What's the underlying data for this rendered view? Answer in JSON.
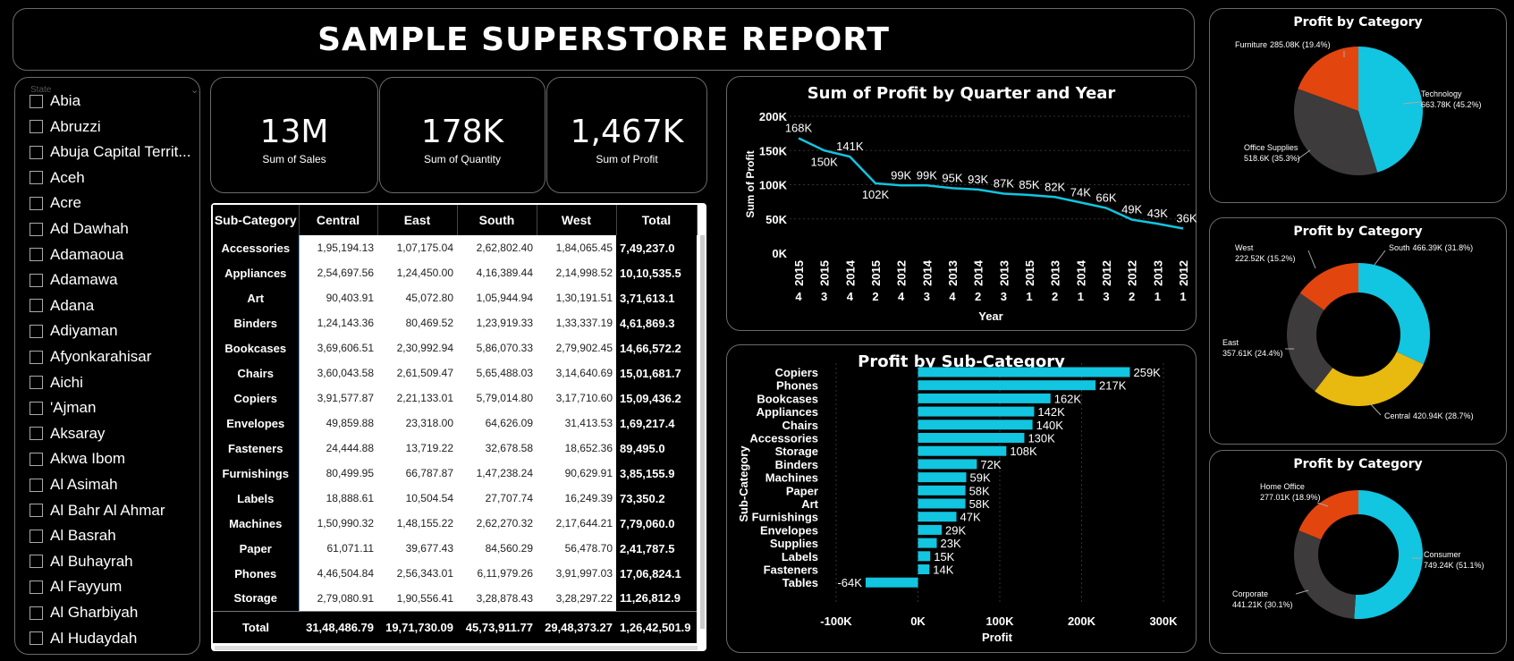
{
  "report": {
    "title": "SAMPLE SUPERSTORE REPORT"
  },
  "slicer": {
    "header": "State",
    "items": [
      "Abia",
      "Abruzzi",
      "Abuja Capital Territ...",
      "Aceh",
      "Acre",
      "Ad Dawhah",
      "Adamaoua",
      "Adamawa",
      "Adana",
      "Adiyaman",
      "Afyonkarahisar",
      "Aichi",
      "'Ajman",
      "Aksaray",
      "Akwa Ibom",
      "Al Asimah",
      "Al Bahr Al Ahmar",
      "Al Basrah",
      "Al Buhayrah",
      "Al Fayyum",
      "Al Gharbiyah",
      "Al Hudaydah"
    ]
  },
  "kpis": [
    {
      "value": "13M",
      "label": "Sum of Sales"
    },
    {
      "value": "178K",
      "label": "Sum of Quantity"
    },
    {
      "value": "1,467K",
      "label": "Sum of Profit"
    }
  ],
  "matrix": {
    "headers": [
      "Sub-Category",
      "Central",
      "East",
      "South",
      "West",
      "Total"
    ],
    "rows": [
      [
        "Accessories",
        "1,95,194.13",
        "1,07,175.04",
        "2,62,802.40",
        "1,84,065.45",
        "7,49,237.0"
      ],
      [
        "Appliances",
        "2,54,697.56",
        "1,24,450.00",
        "4,16,389.44",
        "2,14,998.52",
        "10,10,535.5"
      ],
      [
        "Art",
        "90,403.91",
        "45,072.80",
        "1,05,944.94",
        "1,30,191.51",
        "3,71,613.1"
      ],
      [
        "Binders",
        "1,24,143.36",
        "80,469.52",
        "1,23,919.33",
        "1,33,337.19",
        "4,61,869.3"
      ],
      [
        "Bookcases",
        "3,69,606.51",
        "2,30,992.94",
        "5,86,070.33",
        "2,79,902.45",
        "14,66,572.2"
      ],
      [
        "Chairs",
        "3,60,043.58",
        "2,61,509.47",
        "5,65,488.03",
        "3,14,640.69",
        "15,01,681.7"
      ],
      [
        "Copiers",
        "3,91,577.87",
        "2,21,133.01",
        "5,79,014.80",
        "3,17,710.60",
        "15,09,436.2"
      ],
      [
        "Envelopes",
        "49,859.88",
        "23,318.00",
        "64,626.09",
        "31,413.53",
        "1,69,217.4"
      ],
      [
        "Fasteners",
        "24,444.88",
        "13,719.22",
        "32,678.58",
        "18,652.36",
        "89,495.0"
      ],
      [
        "Furnishings",
        "80,499.95",
        "66,787.87",
        "1,47,238.24",
        "90,629.91",
        "3,85,155.9"
      ],
      [
        "Labels",
        "18,888.61",
        "10,504.54",
        "27,707.74",
        "16,249.39",
        "73,350.2"
      ],
      [
        "Machines",
        "1,50,990.32",
        "1,48,155.22",
        "2,62,270.32",
        "2,17,644.21",
        "7,79,060.0"
      ],
      [
        "Paper",
        "61,071.11",
        "39,677.43",
        "84,560.29",
        "56,478.70",
        "2,41,787.5"
      ],
      [
        "Phones",
        "4,46,504.84",
        "2,56,343.01",
        "6,11,979.26",
        "3,91,997.03",
        "17,06,824.1"
      ],
      [
        "Storage",
        "2,79,080.91",
        "1,90,556.41",
        "3,28,878.43",
        "3,28,297.22",
        "11,26,812.9"
      ]
    ],
    "total": [
      "Total",
      "31,48,486.79",
      "19,71,730.09",
      "45,73,911.77",
      "29,48,373.27",
      "1,26,42,501.9"
    ]
  },
  "line_chart": {
    "title": "Sum of Profit by Quarter and Year",
    "xlabel": "Year",
    "ylabel": "Sum of Profit",
    "yticks": [
      "200K",
      "150K",
      "100K",
      "50K",
      "0K"
    ],
    "color": "#12c5e0",
    "chart_data": {
      "type": "line",
      "ylim": [
        0,
        200000
      ],
      "points": [
        {
          "year": "2015",
          "quarter": "4",
          "value": 168000,
          "label": "168K"
        },
        {
          "year": "2015",
          "quarter": "3",
          "value": 150000,
          "label": "150K"
        },
        {
          "year": "2014",
          "quarter": "4",
          "value": 141000,
          "label": "141K"
        },
        {
          "year": "2015",
          "quarter": "2",
          "value": 102000,
          "label": "102K"
        },
        {
          "year": "2012",
          "quarter": "4",
          "value": 99000,
          "label": "99K"
        },
        {
          "year": "2014",
          "quarter": "3",
          "value": 99000,
          "label": "99K"
        },
        {
          "year": "2013",
          "quarter": "4",
          "value": 95000,
          "label": "95K"
        },
        {
          "year": "2014",
          "quarter": "2",
          "value": 93000,
          "label": "93K"
        },
        {
          "year": "2013",
          "quarter": "3",
          "value": 87000,
          "label": "87K"
        },
        {
          "year": "2015",
          "quarter": "1",
          "value": 85000,
          "label": "85K"
        },
        {
          "year": "2013",
          "quarter": "2",
          "value": 82000,
          "label": "82K"
        },
        {
          "year": "2014",
          "quarter": "1",
          "value": 74000,
          "label": "74K"
        },
        {
          "year": "2012",
          "quarter": "3",
          "value": 66000,
          "label": "66K"
        },
        {
          "year": "2012",
          "quarter": "2",
          "value": 49000,
          "label": "49K"
        },
        {
          "year": "2013",
          "quarter": "1",
          "value": 43000,
          "label": "43K"
        },
        {
          "year": "2012",
          "quarter": "1",
          "value": 36000,
          "label": "36K"
        }
      ]
    }
  },
  "bar_chart": {
    "title": "Profit by Sub-Category",
    "xlabel": "Profit",
    "ylabel": "Sub-Category",
    "xticks": [
      "-100K",
      "0K",
      "100K",
      "200K",
      "300K"
    ],
    "color": "#12c5e0",
    "chart_data": {
      "type": "bar",
      "orientation": "horizontal",
      "xlim": [
        -100000,
        300000
      ],
      "categories": [
        "Copiers",
        "Phones",
        "Bookcases",
        "Appliances",
        "Chairs",
        "Accessories",
        "Storage",
        "Binders",
        "Machines",
        "Paper",
        "Art",
        "Furnishings",
        "Envelopes",
        "Supplies",
        "Labels",
        "Fasteners",
        "Tables"
      ],
      "values": [
        259000,
        217000,
        162000,
        142000,
        140000,
        130000,
        108000,
        72000,
        59000,
        58000,
        58000,
        47000,
        29000,
        23000,
        15000,
        14000,
        -64000
      ],
      "labels": [
        "259K",
        "217K",
        "162K",
        "142K",
        "140K",
        "130K",
        "108K",
        "72K",
        "59K",
        "58K",
        "58K",
        "47K",
        "29K",
        "23K",
        "15K",
        "14K",
        "-64K"
      ]
    }
  },
  "pies": [
    {
      "title": "Profit by Category",
      "type": "pie",
      "slices": [
        {
          "name": "Technology",
          "value": 663.78,
          "label": "663.78K (45.2%)",
          "color": "#12c5e0"
        },
        {
          "name": "Office Supplies",
          "value": 518.6,
          "label": "518.6K (35.3%)",
          "color": "#3d3b3b"
        },
        {
          "name": "Furniture",
          "value": 285.08,
          "label": "285.08K (19.4%)",
          "color": "#e3450f"
        }
      ]
    },
    {
      "title": "Profit by Category",
      "type": "donut",
      "slices": [
        {
          "name": "South",
          "value": 466.39,
          "label": "466.39K (31.8%)",
          "color": "#12c5e0"
        },
        {
          "name": "Central",
          "value": 420.94,
          "label": "420.94K (28.7%)",
          "color": "#e8b90e"
        },
        {
          "name": "East",
          "value": 357.61,
          "label": "357.61K (24.4%)",
          "color": "#3d3b3b"
        },
        {
          "name": "West",
          "value": 222.52,
          "label": "222.52K (15.2%)",
          "color": "#e3450f"
        }
      ]
    },
    {
      "title": "Profit by Category",
      "type": "donut",
      "slices": [
        {
          "name": "Consumer",
          "value": 749.24,
          "label": "749.24K (51.1%)",
          "color": "#12c5e0"
        },
        {
          "name": "Corporate",
          "value": 441.21,
          "label": "441.21K (30.1%)",
          "color": "#3d3b3b"
        },
        {
          "name": "Home Office",
          "value": 277.01,
          "label": "277.01K (18.9%)",
          "color": "#e3450f"
        }
      ]
    }
  ]
}
